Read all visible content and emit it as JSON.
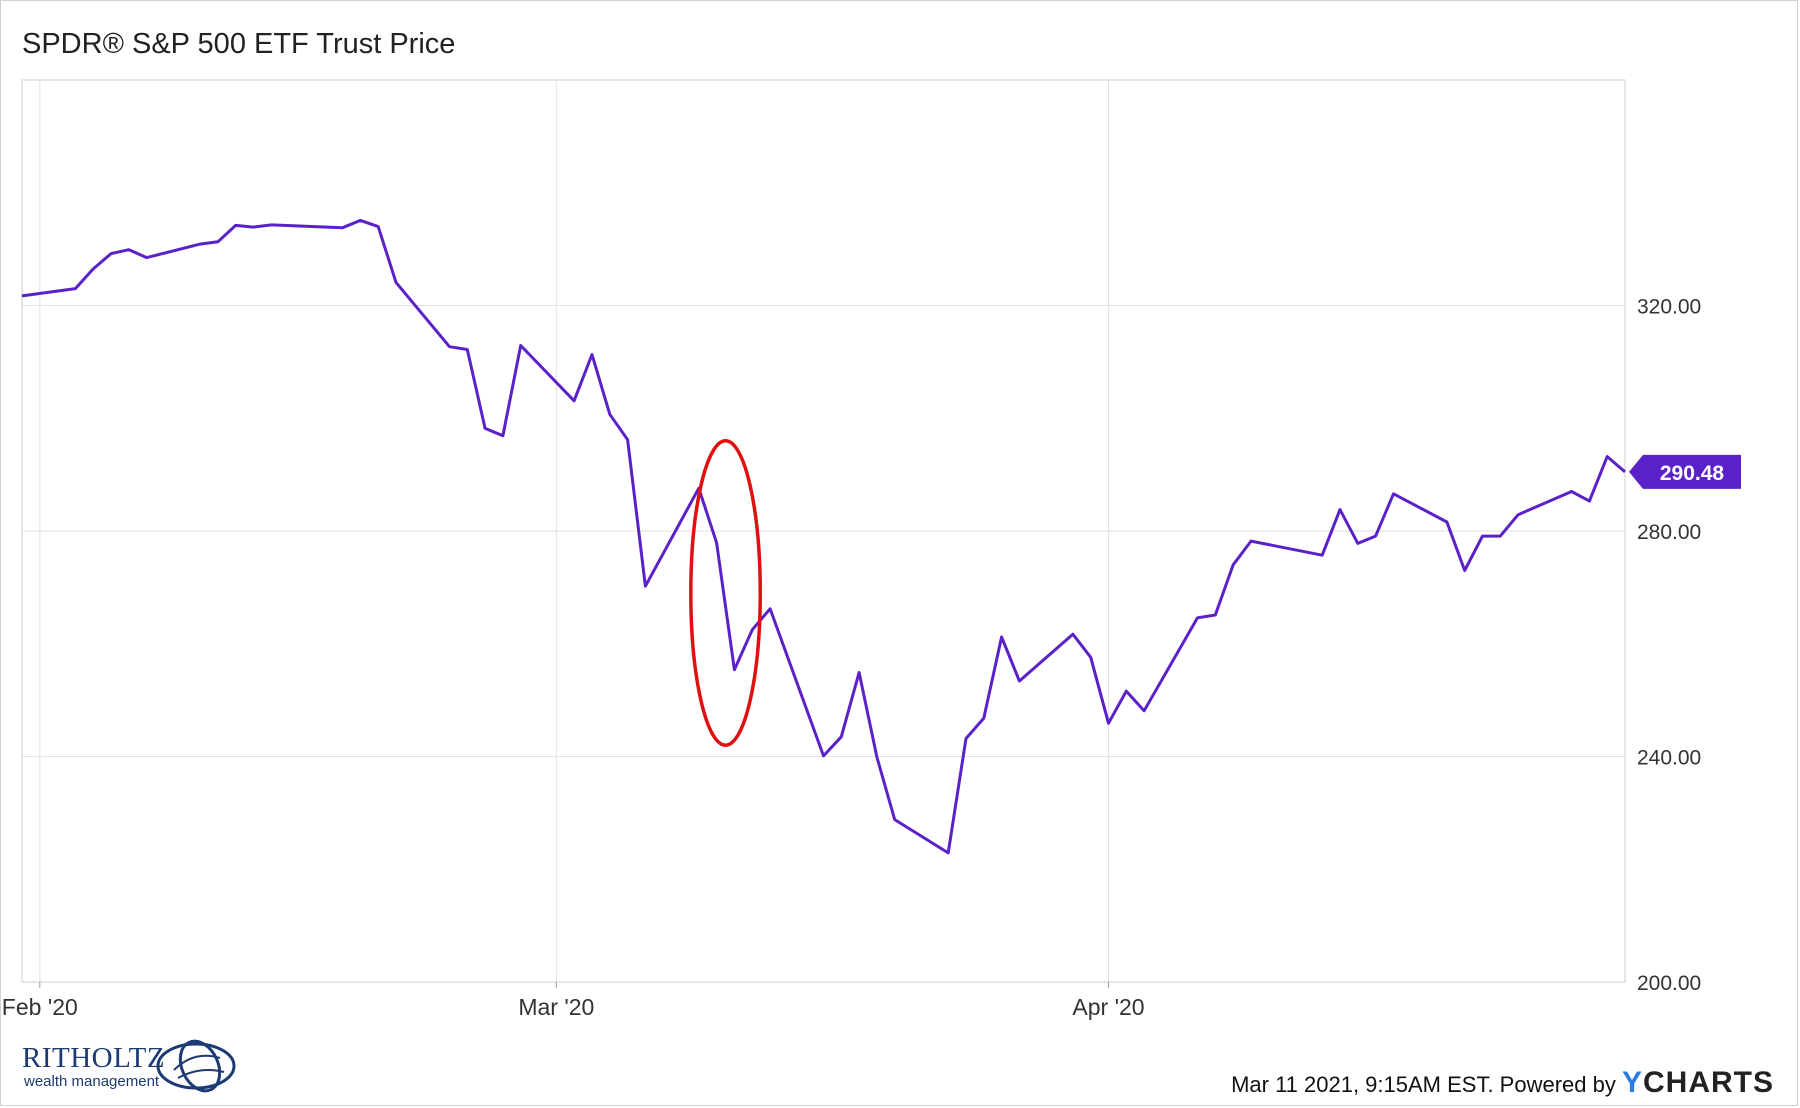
{
  "title": "SPDR® S&P 500 ETF Trust Price",
  "chart_data": {
    "type": "line",
    "title": "SPDR® S&P 500 ETF Trust Price",
    "xlabel": "",
    "ylabel": "",
    "ylim": [
      200,
      360
    ],
    "y_ticks": [
      200,
      240,
      280,
      320
    ],
    "y_tick_labels": [
      "200.00",
      "240.00",
      "280.00",
      "320.00"
    ],
    "x_ticks": [
      {
        "date": "2020-02-01",
        "label": "Feb '20"
      },
      {
        "date": "2020-03-01",
        "label": "Mar '20"
      },
      {
        "date": "2020-04-01",
        "label": "Apr '20"
      }
    ],
    "grid": true,
    "series": [
      {
        "color": "#5b21c9",
        "x": [
          "2020-01-31",
          "2020-02-03",
          "2020-02-04",
          "2020-02-05",
          "2020-02-06",
          "2020-02-07",
          "2020-02-10",
          "2020-02-11",
          "2020-02-12",
          "2020-02-13",
          "2020-02-14",
          "2020-02-18",
          "2020-02-19",
          "2020-02-20",
          "2020-02-21",
          "2020-02-24",
          "2020-02-25",
          "2020-02-26",
          "2020-02-27",
          "2020-02-28",
          "2020-03-02",
          "2020-03-03",
          "2020-03-04",
          "2020-03-05",
          "2020-03-06",
          "2020-03-09",
          "2020-03-10",
          "2020-03-11",
          "2020-03-12",
          "2020-03-13",
          "2020-03-16",
          "2020-03-17",
          "2020-03-18",
          "2020-03-19",
          "2020-03-20",
          "2020-03-23",
          "2020-03-24",
          "2020-03-25",
          "2020-03-26",
          "2020-03-27",
          "2020-03-30",
          "2020-03-31",
          "2020-04-01",
          "2020-04-02",
          "2020-04-03",
          "2020-04-06",
          "2020-04-07",
          "2020-04-08",
          "2020-04-09",
          "2020-04-13",
          "2020-04-14",
          "2020-04-15",
          "2020-04-16",
          "2020-04-17",
          "2020-04-20",
          "2020-04-21",
          "2020-04-22",
          "2020-04-23",
          "2020-04-24",
          "2020-04-27",
          "2020-04-28",
          "2020-04-29",
          "2020-04-30"
        ],
        "values": [
          321.7,
          323.0,
          326.5,
          329.2,
          329.9,
          328.5,
          330.9,
          331.3,
          334.2,
          333.9,
          334.3,
          333.8,
          335.1,
          334.0,
          324.1,
          312.7,
          312.2,
          298.2,
          296.9,
          312.9,
          303.1,
          311.3,
          300.7,
          296.2,
          270.2,
          287.6,
          277.9,
          255.4,
          262.5,
          266.2,
          240.1,
          243.5,
          254.9,
          239.9,
          228.8,
          222.9,
          243.2,
          246.8,
          261.2,
          253.4,
          261.7,
          257.6,
          245.9,
          251.6,
          248.1,
          264.6,
          265.1,
          274.0,
          278.2,
          275.7,
          283.8,
          277.8,
          279.1,
          286.6,
          281.6,
          273.0,
          279.1,
          279.1,
          282.9,
          287.0,
          285.3,
          293.2,
          290.48
        ]
      }
    ],
    "last_value": 290.48,
    "last_value_label": "290.48",
    "annotation": {
      "type": "ellipse",
      "color": "#e01010",
      "x_from": "2020-03-09",
      "x_to": "2020-03-12",
      "y_from": 242,
      "y_to": 296
    }
  },
  "logo": {
    "name": "RITHOLTZ",
    "subtitle": "wealth management"
  },
  "footer": {
    "text": "Mar 11 2021, 9:15AM EST. Powered by",
    "brand_y": "Y",
    "brand_rest": "CHARTS"
  }
}
